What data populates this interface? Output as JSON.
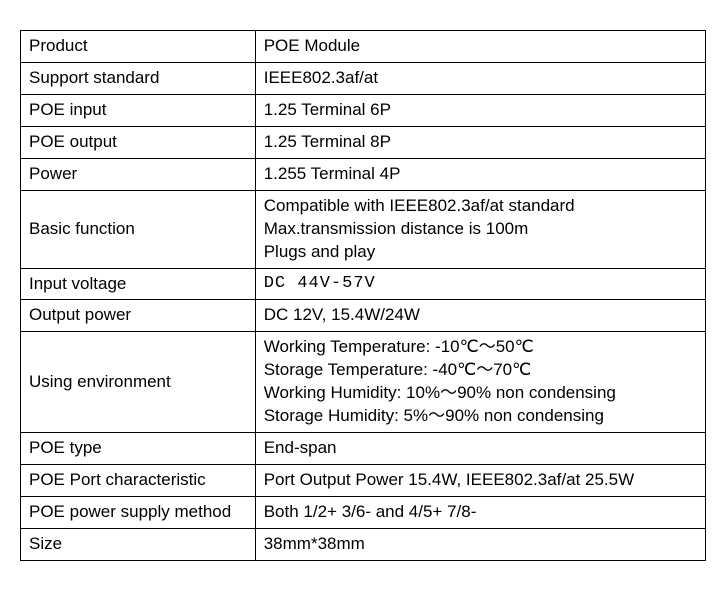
{
  "table": {
    "rows": [
      {
        "label": "Product",
        "value": "POE Module"
      },
      {
        "label": "Support standard",
        "value": "IEEE802.3af/at"
      },
      {
        "label": "POE input",
        "value": "1.25 Terminal 6P"
      },
      {
        "label": "POE output",
        "value": "1.25 Terminal 8P"
      },
      {
        "label": "Power",
        "value": "1.255 Terminal 4P"
      },
      {
        "label": "Basic function",
        "value": "Compatible with IEEE802.3af/at standard\nMax.transmission distance is 100m\nPlugs and play"
      },
      {
        "label": "Input voltage",
        "value": "DC 44V-57V",
        "valueClass": "monospace"
      },
      {
        "label": "Output power",
        "value": "DC 12V, 15.4W/24W"
      },
      {
        "label": "Using environment",
        "value": "Working Temperature: -10℃～50℃\nStorage Temperature: -40℃～70℃\nWorking Humidity: 10%～90%  non condensing\nStorage Humidity: 5%～90% non condensing"
      },
      {
        "label": "POE type",
        "value": "End-span"
      },
      {
        "label": "POE Port characteristic",
        "value": "Port Output Power 15.4W, IEEE802.3af/at 25.5W"
      },
      {
        "label": "POE power supply method",
        "value": "Both 1/2+ 3/6- and 4/5+ 7/8-"
      },
      {
        "label": "Size",
        "value": "38mm*38mm"
      }
    ],
    "styling": {
      "border_color": "#000000",
      "border_width": 1.5,
      "background_color": "#ffffff",
      "text_color": "#000000",
      "font_size": 17,
      "label_column_width": 235,
      "value_column_width": 451,
      "total_width": 686,
      "cell_padding": "4px 8px"
    }
  }
}
